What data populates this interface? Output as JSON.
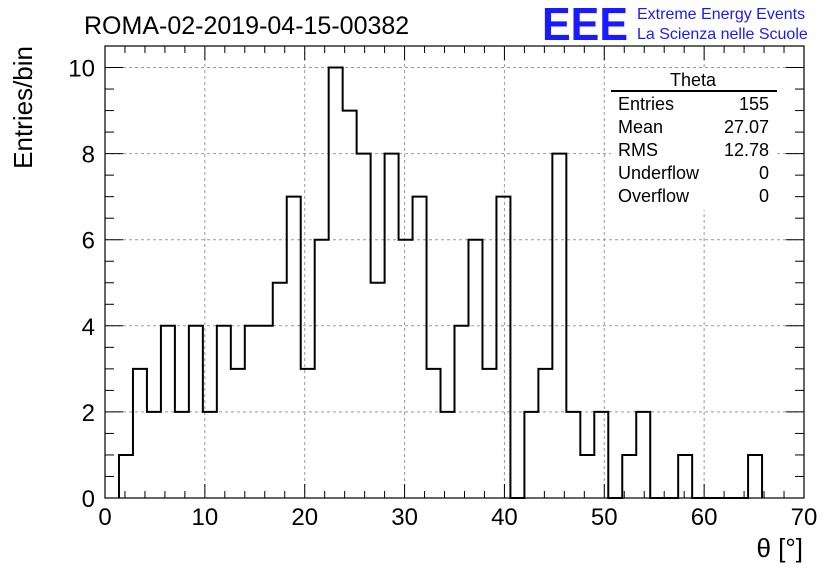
{
  "chart_data": {
    "type": "histogram",
    "title": "ROMA-02-2019-04-15-00382",
    "xlabel": "θ [°]",
    "ylabel": "Entries/bin",
    "xlim": [
      0,
      70
    ],
    "ylim": [
      0,
      10.5
    ],
    "x_ticks": [
      "0",
      "10",
      "20",
      "30",
      "40",
      "50",
      "60",
      "70"
    ],
    "y_ticks": [
      "0",
      "2",
      "4",
      "6",
      "8",
      "10"
    ],
    "grid": true,
    "bin_width": 1.4,
    "bin_edges_start": 1.4,
    "values": [
      1,
      3,
      2,
      4,
      2,
      4,
      2,
      4,
      3,
      4,
      4,
      5,
      7,
      3,
      6,
      10,
      9,
      8,
      5,
      8,
      6,
      7,
      3,
      2,
      4,
      6,
      3,
      7,
      0,
      2,
      3,
      8,
      2,
      1,
      2,
      0,
      1,
      2,
      0,
      0,
      1,
      0,
      0,
      0,
      0,
      1
    ]
  },
  "stats_box": {
    "title": "Theta",
    "rows": [
      {
        "label": "Entries",
        "value": "155"
      },
      {
        "label": "Mean",
        "value": "27.07"
      },
      {
        "label": "RMS",
        "value": "12.78"
      },
      {
        "label": "Underflow",
        "value": "0"
      },
      {
        "label": "Overflow",
        "value": "0"
      }
    ]
  },
  "logo": {
    "mark": "EEE",
    "line1": "Extreme Energy Events",
    "line2": "La Scienza nelle Scuole",
    "color": "#1a1aff"
  }
}
